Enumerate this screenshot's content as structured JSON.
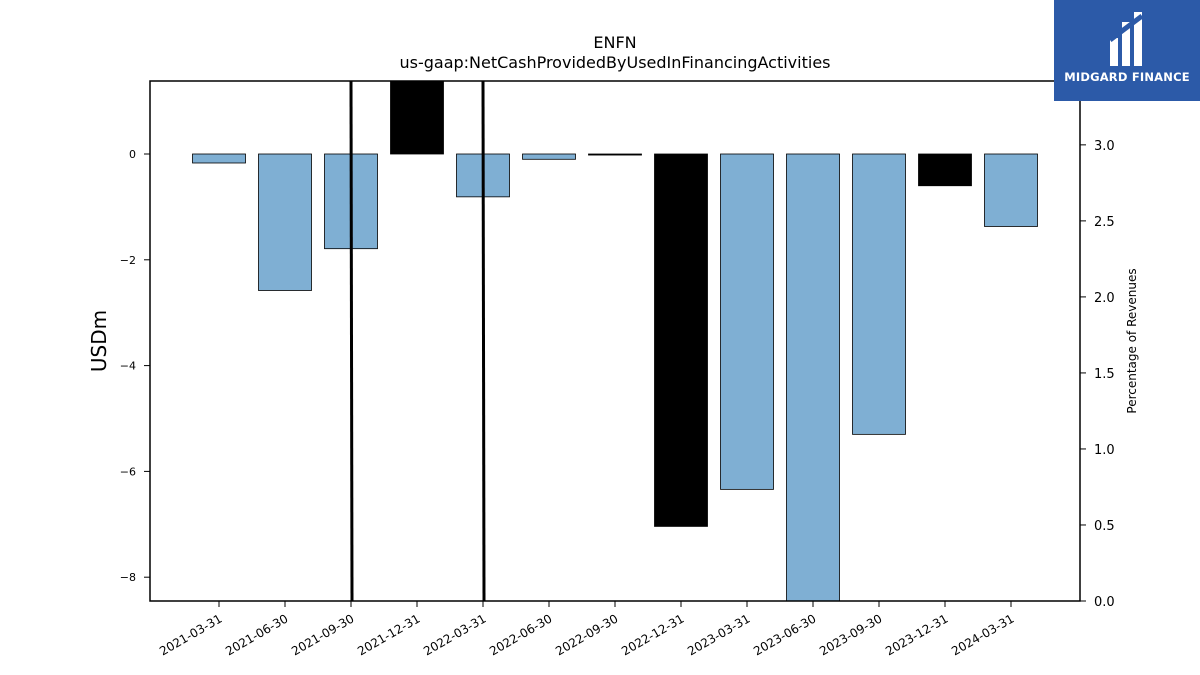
{
  "chart_data": {
    "type": "bar",
    "title": "ENFN",
    "subtitle": "us-gaap:NetCashProvidedByUsedInFinancingActivities",
    "ylabel": "USDm",
    "y2label": "Percentage of Revenues",
    "categories": [
      "2021-03-31",
      "2021-06-30",
      "2021-09-30",
      "2021-12-31",
      "2022-03-31",
      "2022-06-30",
      "2022-09-30",
      "2022-12-31",
      "2023-03-31",
      "2023-06-30",
      "2023-09-30",
      "2023-12-31",
      "2024-03-31"
    ],
    "values": [
      -0.17,
      -2.58,
      -1.79,
      1.38,
      -0.81,
      -0.1,
      -0.02,
      -7.04,
      -6.34,
      -8.45,
      -5.3,
      -0.6,
      -1.37
    ],
    "bar_colors": [
      "#7fafd3",
      "#7fafd3",
      "#7fafd3",
      "#000000",
      "#7fafd3",
      "#7fafd3",
      "#000000",
      "#000000",
      "#7fafd3",
      "#7fafd3",
      "#7fafd3",
      "#000000",
      "#7fafd3"
    ],
    "ylim": [
      -8.45,
      1.38
    ],
    "y_ticks": [
      0,
      -2,
      -4,
      -6,
      -8
    ],
    "y_tick_labels": [
      "0",
      "−2",
      "−4",
      "−6",
      "−8"
    ],
    "y2lim": [
      0,
      3.42
    ],
    "y2_ticks": [
      0,
      0.5,
      1.0,
      1.5,
      2.0,
      2.5,
      3.0
    ],
    "y2_tick_labels": [
      "0.0",
      "0.5",
      "1.0",
      "1.5",
      "2.0",
      "2.5",
      "3.0"
    ],
    "vlines_after_category": [
      "2021-09-30",
      "2022-03-31"
    ],
    "grid": false
  },
  "logo": {
    "text": "MIDGARD FINANCE",
    "background": "#2c5aa8"
  }
}
